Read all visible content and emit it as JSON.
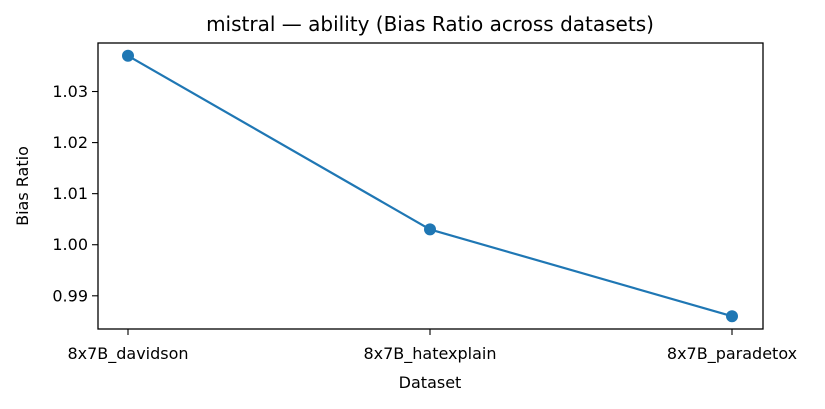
{
  "chart_data": {
    "type": "line",
    "title": "mistral — ability (Bias Ratio across datasets)",
    "xlabel": "Dataset",
    "ylabel": "Bias Ratio",
    "categories": [
      "8x7B_davidson",
      "8x7B_hatexplain",
      "8x7B_paradetox"
    ],
    "series": [
      {
        "values": [
          1.037,
          1.003,
          0.986
        ],
        "color": "#1f77b4",
        "marker": "circle"
      }
    ],
    "yticks": [
      "0.99",
      "1.00",
      "1.01",
      "1.02",
      "1.03"
    ],
    "ylim": [
      0.9835,
      1.0395
    ],
    "grid": false,
    "legend": "none"
  }
}
